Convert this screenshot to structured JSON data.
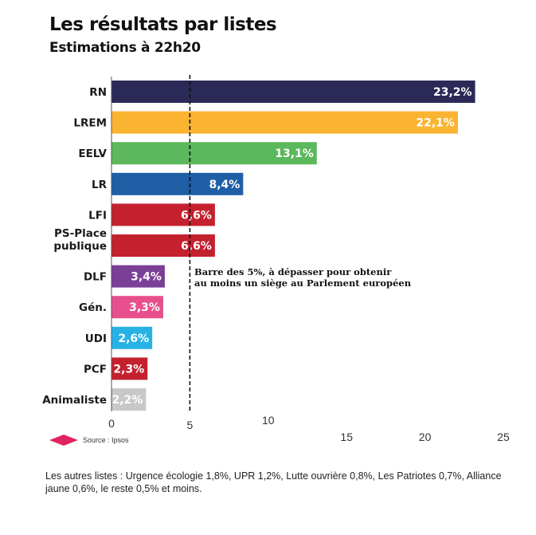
{
  "chart_data": {
    "type": "bar",
    "orientation": "horizontal",
    "title": "Les résultats par listes",
    "subtitle": "Estimations à 22h20",
    "categories": [
      "RN",
      "LREM",
      "EELV",
      "LR",
      "LFI",
      "PS-Place publique",
      "DLF",
      "Gén.",
      "UDI",
      "PCF",
      "Animaliste"
    ],
    "values": [
      23.2,
      22.1,
      13.1,
      8.4,
      6.6,
      6.6,
      3.4,
      3.3,
      2.6,
      2.3,
      2.2
    ],
    "value_labels": [
      "23,2%",
      "22,1%",
      "13,1%",
      "8,4%",
      "6,6%",
      "6,6%",
      "3,4%",
      "3,3%",
      "2,6%",
      "2,3%",
      "2,2%"
    ],
    "colors": [
      "#2b2a57",
      "#fbb432",
      "#5cb85c",
      "#1f5fa6",
      "#c4212f",
      "#c4212f",
      "#7b3f97",
      "#e7508c",
      "#27b2e6",
      "#c4212f",
      "#c8c8c8"
    ],
    "xlim": [
      0,
      25
    ],
    "xticks": [
      0,
      5,
      10,
      15,
      20,
      25
    ],
    "threshold": {
      "value": 5,
      "label_lines": [
        "Barre des 5%, à dépasser pour obtenir",
        "au moins un siège au Parlement européen"
      ]
    },
    "grid": false,
    "source": "Source : Ipsos",
    "source_marker_color": "#e0245e"
  },
  "footnote": "Les autres listes : Urgence écologie 1,8%, UPR 1,2%, Lutte ouvrière 0,8%, Les Patriotes 0,7%, Alliance jaune 0,6%, le reste 0,5% et moins."
}
